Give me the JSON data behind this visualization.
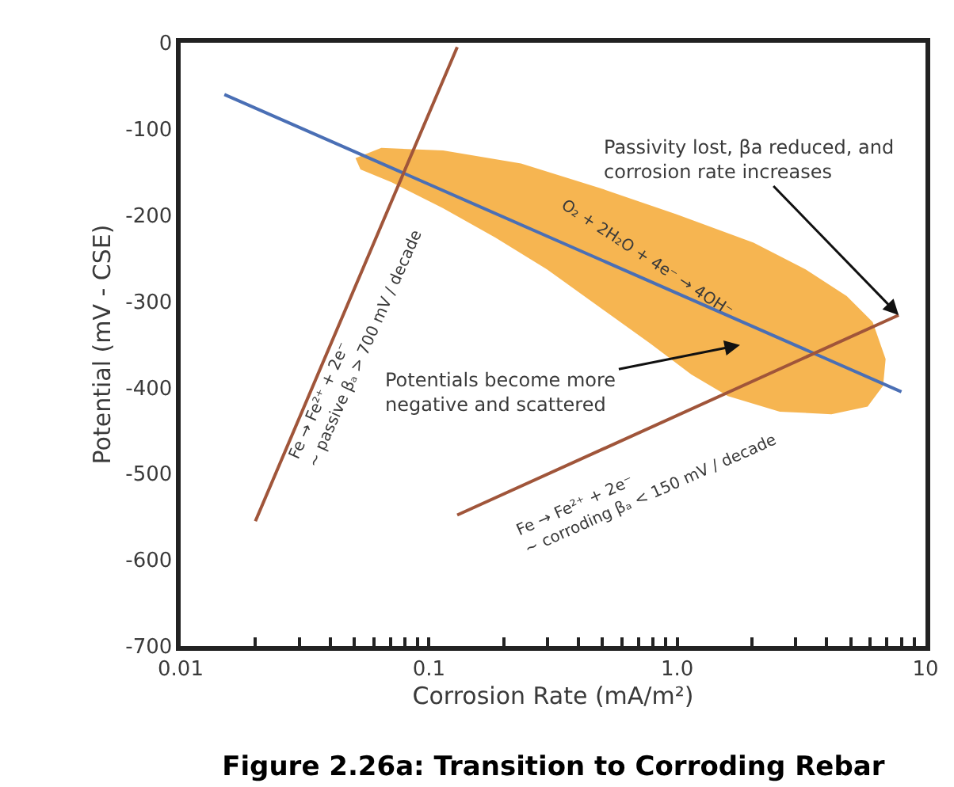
{
  "chart_data": {
    "type": "line",
    "title": "Figure 2.26a: Transition to Corroding Rebar",
    "xlabel": "Corrosion Rate (mA/m²)",
    "ylabel": "Potential (mV - CSE)",
    "log": "x",
    "marker": "none",
    "line_style": "solid",
    "xlim": [
      0.01,
      10
    ],
    "ylim": [
      -700,
      0
    ],
    "xticks": [
      {
        "value": 0.01,
        "label": "0.01"
      },
      {
        "value": 0.02,
        "label": null
      },
      {
        "value": 0.03,
        "label": null
      },
      {
        "value": 0.04,
        "label": null
      },
      {
        "value": 0.05,
        "label": null
      },
      {
        "value": 0.06,
        "label": null
      },
      {
        "value": 0.07,
        "label": null
      },
      {
        "value": 0.08,
        "label": null
      },
      {
        "value": 0.09,
        "label": null
      },
      {
        "value": 0.1,
        "label": "0.1"
      },
      {
        "value": 0.2,
        "label": null
      },
      {
        "value": 0.3,
        "label": null
      },
      {
        "value": 0.4,
        "label": null
      },
      {
        "value": 0.5,
        "label": null
      },
      {
        "value": 0.6,
        "label": null
      },
      {
        "value": 0.7,
        "label": null
      },
      {
        "value": 0.8,
        "label": null
      },
      {
        "value": 0.9,
        "label": null
      },
      {
        "value": 1,
        "label": "1.0"
      },
      {
        "value": 2,
        "label": null
      },
      {
        "value": 3,
        "label": null
      },
      {
        "value": 4,
        "label": null
      },
      {
        "value": 5,
        "label": null
      },
      {
        "value": 6,
        "label": null
      },
      {
        "value": 7,
        "label": null
      },
      {
        "value": 8,
        "label": null
      },
      {
        "value": 9,
        "label": null
      },
      {
        "value": 10,
        "label": "10"
      }
    ],
    "yticks": [
      0,
      -100,
      -200,
      -300,
      -400,
      -500,
      -600,
      -700
    ],
    "series": [
      {
        "type": "area",
        "color": "#f5a833",
        "x": [
          0.0506,
          0.0643,
          0.114,
          0.235,
          0.482,
          0.99,
          2.03,
          3.29,
          4.82,
          6.13,
          6.91,
          6.75,
          5.85,
          4.18,
          2.59,
          1.6,
          1.14,
          0.78,
          0.482,
          0.299,
          0.185,
          0.114,
          0.0708,
          0.053,
          0.0506
        ],
        "values": [
          -134,
          -122,
          -125,
          -140,
          -168,
          -199,
          -232,
          -263,
          -294,
          -324,
          -367,
          -398,
          -422,
          -431,
          -428,
          -410,
          -385,
          -349,
          -306,
          -263,
          -226,
          -192,
          -162,
          -147,
          -134
        ]
      },
      {
        "color": "#4a6fb5",
        "x": [
          0.015,
          8
        ],
        "values": [
          -60,
          -405
        ]
      },
      {
        "color": "#a0553a",
        "x": [
          0.02,
          0.13
        ],
        "values": [
          -555,
          -5
        ]
      },
      {
        "color": "#a0553a",
        "x": [
          0.13,
          7.8
        ],
        "values": [
          -548,
          -316
        ]
      }
    ],
    "annotations": [
      {
        "text": "Passivity lost, βa reduced, and\ncorrosion rate increases",
        "x": 7.8,
        "y": -316
      },
      "Potentials become more\nnegative and scattered",
      "O₂ + 2H₂O + 4e⁻ → 4OH⁻",
      "Fe → Fe²⁺ + 2e⁻\n~ passive βₐ > 700 mV / decade",
      "Fe → Fe²⁺ + 2e⁻\n~ corroding βₐ < 150 mV / decade"
    ]
  }
}
